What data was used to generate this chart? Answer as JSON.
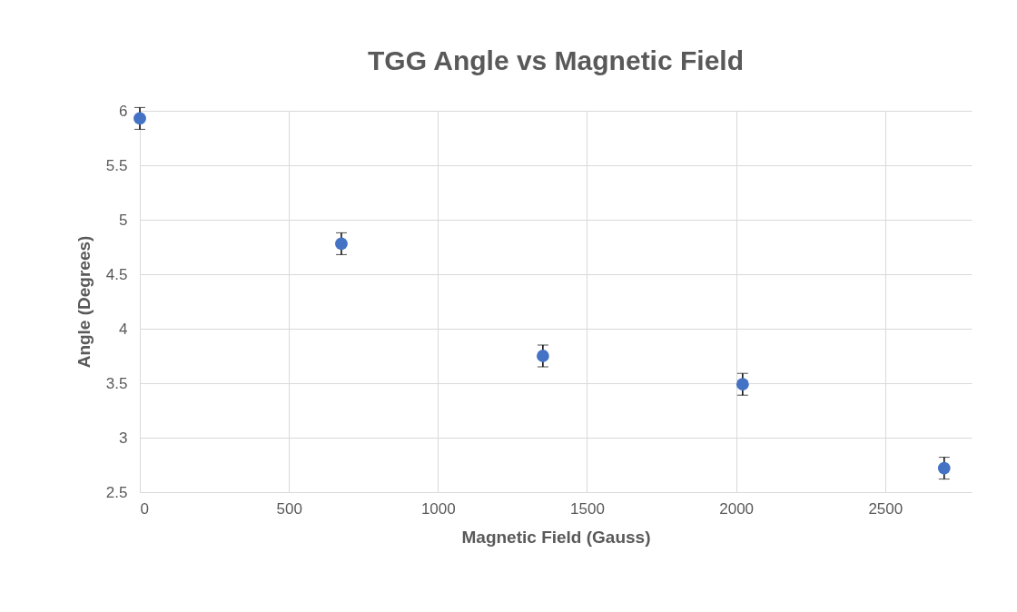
{
  "chart_data": {
    "type": "scatter",
    "title": "TGG Angle vs Magnetic Field",
    "xlabel": "Magnetic Field (Gauss)",
    "ylabel": "Angle (Degrees)",
    "x": [
      0,
      676,
      1352,
      2022,
      2698
    ],
    "values": [
      5.93,
      4.78,
      3.75,
      3.49,
      2.72
    ],
    "color": "#4472c4",
    "errors": [
      0.1,
      0.1,
      0.1,
      0.1,
      0.1
    ],
    "xlim": [
      0,
      2790
    ],
    "xticks": [
      0,
      500,
      1000,
      1500,
      2000,
      2500
    ],
    "ylim": [
      2.5,
      6
    ],
    "yticks": [
      2.5,
      3,
      3.5,
      4,
      4.5,
      5,
      5.5,
      6
    ],
    "grid": true,
    "marker": "circle"
  }
}
